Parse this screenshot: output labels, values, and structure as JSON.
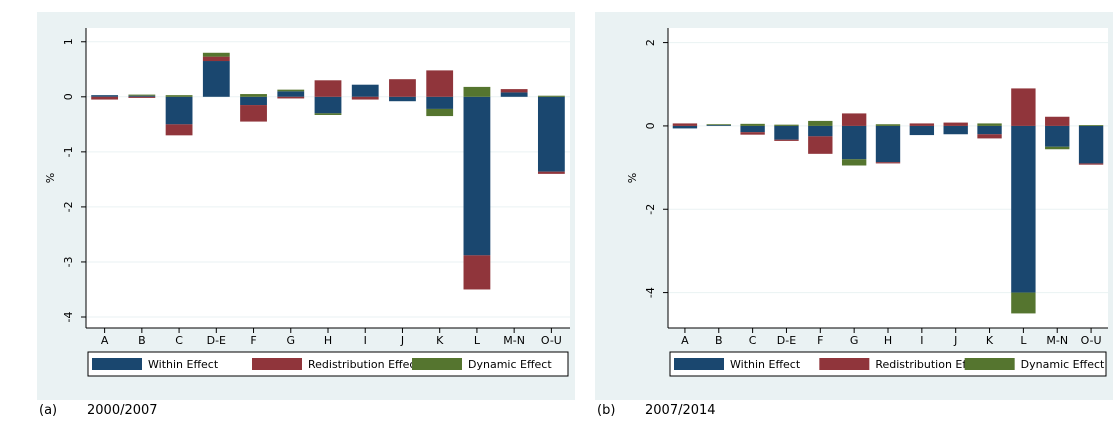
{
  "chart_data": [
    {
      "type": "stacked-bar",
      "caption_label": "(a)",
      "caption": "2000/2007",
      "ylabel": "%",
      "categories": [
        "A",
        "B",
        "C",
        "D-E",
        "F",
        "G",
        "H",
        "I",
        "J",
        "K",
        "L",
        "M-N",
        "O-U"
      ],
      "ylim": [
        -4.2,
        1.25
      ],
      "yticks": [
        -4,
        -3,
        -2,
        -1,
        0,
        1
      ],
      "grid": true,
      "series": [
        {
          "name": "Within Effect",
          "color": "#1a476f",
          "values": [
            0.03,
            0.02,
            -0.5,
            0.65,
            -0.15,
            0.1,
            -0.3,
            0.22,
            -0.08,
            -0.22,
            -2.88,
            0.08,
            -1.36
          ]
        },
        {
          "name": "Redistribution Effect",
          "color": "#90353b",
          "values": [
            -0.05,
            -0.02,
            -0.2,
            0.08,
            -0.3,
            -0.03,
            0.3,
            -0.05,
            0.32,
            0.48,
            -0.62,
            0.06,
            -0.04
          ]
        },
        {
          "name": "Dynamic Effect",
          "color": "#55752f",
          "values": [
            0,
            0.02,
            0.03,
            0.07,
            0.05,
            0.03,
            -0.03,
            0,
            0,
            -0.13,
            0.18,
            0,
            0.02
          ]
        }
      ]
    },
    {
      "type": "stacked-bar",
      "caption_label": "(b)",
      "caption": "2007/2014",
      "ylabel": "%",
      "categories": [
        "A",
        "B",
        "C",
        "D-E",
        "F",
        "G",
        "H",
        "I",
        "J",
        "K",
        "L",
        "M-N",
        "O-U"
      ],
      "ylim": [
        -4.85,
        2.35
      ],
      "yticks": [
        -4,
        -2,
        0,
        2
      ],
      "grid": true,
      "series": [
        {
          "name": "Within Effect",
          "color": "#1a476f",
          "values": [
            -0.06,
            0.02,
            -0.15,
            -0.33,
            -0.25,
            -0.8,
            -0.87,
            -0.22,
            -0.2,
            -0.2,
            -4.0,
            -0.5,
            -0.9
          ]
        },
        {
          "name": "Redistribution Effect",
          "color": "#90353b",
          "values": [
            0.06,
            0,
            -0.06,
            -0.03,
            -0.42,
            0.3,
            -0.03,
            0.06,
            0.08,
            -0.1,
            0.9,
            0.22,
            -0.03
          ]
        },
        {
          "name": "Dynamic Effect",
          "color": "#55752f",
          "values": [
            0,
            0.02,
            0.05,
            0.03,
            0.12,
            -0.15,
            0.04,
            0,
            0,
            0.06,
            -0.5,
            -0.06,
            0.02
          ]
        }
      ]
    }
  ]
}
